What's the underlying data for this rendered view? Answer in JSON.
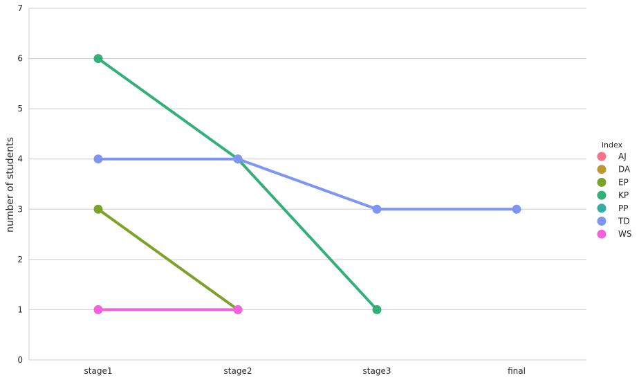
{
  "chart_data": {
    "type": "line",
    "categories": [
      "stage1",
      "stage2",
      "stage3",
      "final"
    ],
    "ylabel": "number of students",
    "xlabel": "",
    "ylim": [
      0,
      7
    ],
    "yticks": [
      0,
      1,
      2,
      3,
      4,
      5,
      6,
      7
    ],
    "grid": "horizontal",
    "legend": {
      "title": "index",
      "placement": "right"
    },
    "series": [
      {
        "name": "AJ",
        "color": "#f77189",
        "values": [
          null,
          null,
          null,
          null
        ]
      },
      {
        "name": "DA",
        "color": "#bb9832",
        "values": [
          null,
          null,
          null,
          null
        ]
      },
      {
        "name": "EP",
        "color": "#7ca22a",
        "values": [
          3,
          1,
          null,
          null
        ]
      },
      {
        "name": "KP",
        "color": "#33b07a",
        "values": [
          6,
          4,
          1,
          null
        ]
      },
      {
        "name": "PP",
        "color": "#36ada4",
        "values": [
          null,
          null,
          null,
          null
        ]
      },
      {
        "name": "TD",
        "color": "#7e95f1",
        "values": [
          4,
          4,
          3,
          3
        ]
      },
      {
        "name": "WS",
        "color": "#f461dd",
        "values": [
          1,
          1,
          null,
          null
        ]
      }
    ]
  }
}
